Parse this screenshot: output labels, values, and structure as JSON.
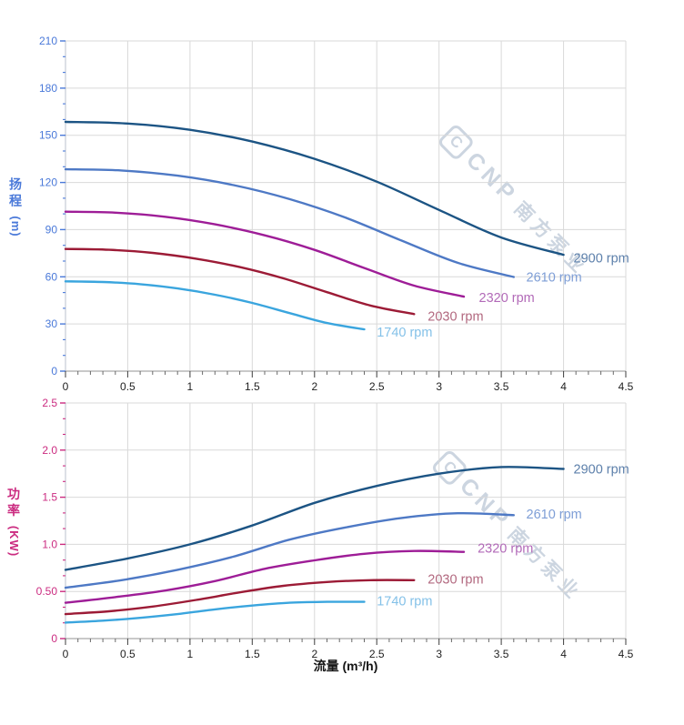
{
  "theme": {
    "background": "#ffffff",
    "grid_color": "#d9d9d9",
    "x_axis_line_color": "#a9a9a9",
    "y_axis_line_color": "#c6cbd5",
    "x_tick_color": "#3c3c3c",
    "x_minor_tick_color": "#6a6a6a",
    "x_tick_label_color": "#1f1f1f",
    "watermark_color": "#ccd5e0"
  },
  "watermark": {
    "logo_letter": "C",
    "text_en": "CNP",
    "text_cn": "南方泵业"
  },
  "x_axis": {
    "title": "流量 (m³/h)",
    "min": 0,
    "max": 4.5,
    "major_step": 0.5,
    "minor_divisions": 5,
    "tick_labels": [
      "0",
      "0.5",
      "1",
      "1.5",
      "2",
      "2.5",
      "3",
      "3.5",
      "4",
      "4.5"
    ]
  },
  "chart_data": [
    {
      "type": "line",
      "name": "head",
      "title": "",
      "xlabel": "流量 (m³/h)",
      "ylabel": "扬程 (m)",
      "ylabel_cn": "扬程",
      "ylabel_unit": "(m)",
      "axis_color": "#4a79d9",
      "ylim": [
        0,
        210
      ],
      "y_major_step": 30,
      "y_minor_divisions": 3,
      "y_tick_labels": [
        "0",
        "30",
        "60",
        "90",
        "120",
        "150",
        "180",
        "210"
      ],
      "series": [
        {
          "name": "2900 rpm",
          "color": "#1c5484",
          "label_color": "#5d80ab",
          "x": [
            0,
            0.5,
            1,
            1.5,
            2,
            2.5,
            3,
            3.5,
            4
          ],
          "y": [
            158.5,
            157.5,
            153.5,
            146,
            135,
            120.5,
            102.5,
            85,
            74
          ],
          "label_at": [
            4.08,
            72
          ]
        },
        {
          "name": "2610 rpm",
          "color": "#4e79c5",
          "label_color": "#7e9ed6",
          "x": [
            0,
            0.45,
            0.9,
            1.35,
            1.8,
            2.25,
            2.7,
            3.15,
            3.6
          ],
          "y": [
            128.4,
            127.6,
            124.3,
            118.3,
            109.4,
            97.6,
            83,
            68.9,
            59.9
          ],
          "label_at": [
            3.7,
            60
          ]
        },
        {
          "name": "2320 rpm",
          "color": "#9e1d97",
          "label_color": "#b26ab8",
          "x": [
            0,
            0.4,
            0.8,
            1.2,
            1.6,
            2,
            2.4,
            2.8,
            3.2
          ],
          "y": [
            101.4,
            100.8,
            98.2,
            93.4,
            86.4,
            77.1,
            65.6,
            54.4,
            47.4
          ],
          "label_at": [
            3.32,
            47
          ]
        },
        {
          "name": "2030 rpm",
          "color": "#9c1b36",
          "label_color": "#b2687f",
          "x": [
            0,
            0.35,
            0.7,
            1.05,
            1.4,
            1.75,
            2.1,
            2.45,
            2.8
          ],
          "y": [
            77.7,
            77.2,
            75.2,
            71.5,
            66.2,
            59,
            50.2,
            41.7,
            36.3
          ],
          "label_at": [
            2.91,
            35
          ]
        },
        {
          "name": "1740 rpm",
          "color": "#3aa5de",
          "label_color": "#84c1e8",
          "x": [
            0,
            0.3,
            0.6,
            0.9,
            1.2,
            1.5,
            1.8,
            2.1,
            2.4
          ],
          "y": [
            57.1,
            56.7,
            55.3,
            52.6,
            48.6,
            43.4,
            36.9,
            30.6,
            26.6
          ],
          "label_at": [
            2.5,
            25
          ]
        }
      ]
    },
    {
      "type": "line",
      "name": "power",
      "title": "",
      "xlabel": "流量 (m³/h)",
      "ylabel": "功率 (KW)",
      "ylabel_cn": "功率",
      "ylabel_unit": "(KW)",
      "axis_color": "#cb2b80",
      "ylim": [
        0,
        2.5
      ],
      "y_major_step": 0.5,
      "y_minor_divisions": 3,
      "y_tick_labels": [
        "0",
        "0.50",
        "1.0",
        "1.5",
        "2.0",
        "2.5"
      ],
      "series": [
        {
          "name": "2900 rpm",
          "color": "#1c5484",
          "label_color": "#5d80ab",
          "x": [
            0,
            0.5,
            1,
            1.5,
            2,
            2.5,
            3,
            3.5,
            4
          ],
          "y": [
            0.73,
            0.85,
            1.0,
            1.2,
            1.44,
            1.62,
            1.75,
            1.82,
            1.8
          ],
          "label_at": [
            4.08,
            1.8
          ]
        },
        {
          "name": "2610 rpm",
          "color": "#4e79c5",
          "label_color": "#7e9ed6",
          "x": [
            0,
            0.45,
            0.9,
            1.35,
            1.8,
            2.25,
            2.7,
            3.15,
            3.6
          ],
          "y": [
            0.54,
            0.62,
            0.73,
            0.87,
            1.05,
            1.18,
            1.28,
            1.33,
            1.31
          ],
          "label_at": [
            3.7,
            1.32
          ]
        },
        {
          "name": "2320 rpm",
          "color": "#9e1d97",
          "label_color": "#b26ab8",
          "x": [
            0,
            0.4,
            0.8,
            1.2,
            1.6,
            2,
            2.4,
            2.8,
            3.2
          ],
          "y": [
            0.38,
            0.44,
            0.51,
            0.61,
            0.74,
            0.83,
            0.9,
            0.93,
            0.92
          ],
          "label_at": [
            3.31,
            0.96
          ]
        },
        {
          "name": "2030 rpm",
          "color": "#9c1b36",
          "label_color": "#b2687f",
          "x": [
            0,
            0.35,
            0.7,
            1.05,
            1.4,
            1.75,
            2.1,
            2.45,
            2.8
          ],
          "y": [
            0.26,
            0.29,
            0.34,
            0.41,
            0.49,
            0.56,
            0.6,
            0.62,
            0.62
          ],
          "label_at": [
            2.91,
            0.63
          ]
        },
        {
          "name": "1740 rpm",
          "color": "#3aa5de",
          "label_color": "#84c1e8",
          "x": [
            0,
            0.3,
            0.6,
            0.9,
            1.2,
            1.5,
            1.8,
            2.1,
            2.4
          ],
          "y": [
            0.17,
            0.19,
            0.22,
            0.26,
            0.31,
            0.35,
            0.38,
            0.39,
            0.39
          ],
          "label_at": [
            2.5,
            0.4
          ]
        }
      ]
    }
  ]
}
